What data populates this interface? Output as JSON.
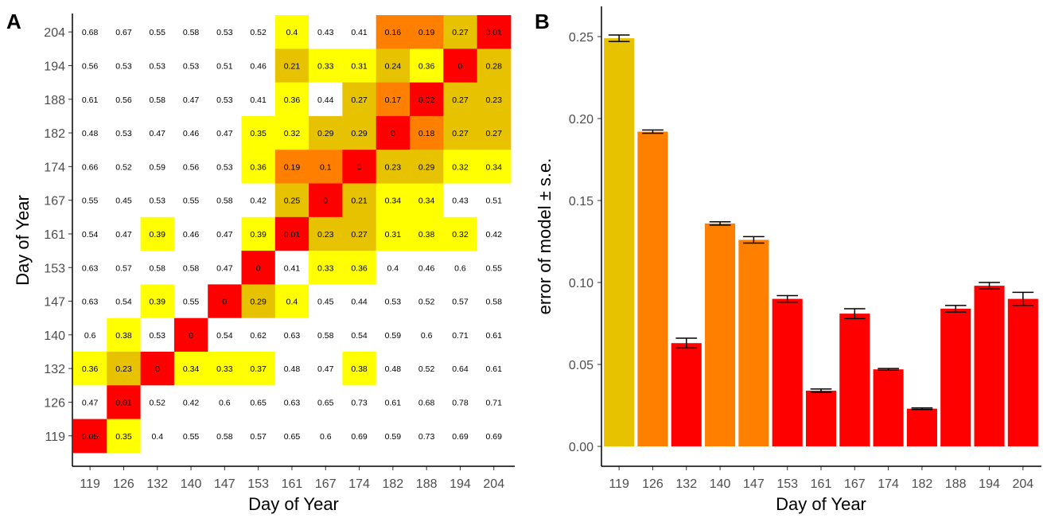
{
  "colors": {
    "white": "#ffffff",
    "yellow": "#ffff00",
    "gold": "#e6c200",
    "orange": "#ff8000",
    "red": "#ff0000",
    "bar_gold": "#e6c200",
    "bar_orange": "#ff8000",
    "bar_red": "#ff0000"
  },
  "chart_data": [
    {
      "type": "heatmap",
      "panel_label": "A",
      "xlabel": "Day of Year",
      "ylabel": "Day of Year",
      "x_categories": [
        "119",
        "126",
        "132",
        "140",
        "147",
        "153",
        "161",
        "167",
        "174",
        "182",
        "188",
        "194",
        "204"
      ],
      "y_categories": [
        "119",
        "126",
        "132",
        "140",
        "147",
        "153",
        "161",
        "167",
        "174",
        "182",
        "188",
        "194",
        "204"
      ],
      "rows": [
        {
          "y": "204",
          "values": [
            "0.68",
            "0.67",
            "0.55",
            "0.58",
            "0.53",
            "0.52",
            "0.4",
            "0.43",
            "0.41",
            "0.16",
            "0.19",
            "0.27",
            "0.01"
          ],
          "fills": [
            "white",
            "white",
            "white",
            "white",
            "white",
            "white",
            "yellow",
            "white",
            "white",
            "orange",
            "orange",
            "gold",
            "red"
          ]
        },
        {
          "y": "194",
          "values": [
            "0.56",
            "0.53",
            "0.53",
            "0.53",
            "0.51",
            "0.46",
            "0.21",
            "0.33",
            "0.31",
            "0.24",
            "0.36",
            "0",
            "0.28"
          ],
          "fills": [
            "white",
            "white",
            "white",
            "white",
            "white",
            "white",
            "gold",
            "yellow",
            "yellow",
            "gold",
            "yellow",
            "red",
            "gold"
          ]
        },
        {
          "y": "188",
          "values": [
            "0.61",
            "0.56",
            "0.58",
            "0.47",
            "0.53",
            "0.41",
            "0.36",
            "0.44",
            "0.27",
            "0.17",
            "0.02",
            "0.27",
            "0.23"
          ],
          "fills": [
            "white",
            "white",
            "white",
            "white",
            "white",
            "white",
            "yellow",
            "white",
            "gold",
            "orange",
            "red",
            "gold",
            "gold"
          ]
        },
        {
          "y": "182",
          "values": [
            "0.48",
            "0.53",
            "0.47",
            "0.46",
            "0.47",
            "0.35",
            "0.32",
            "0.29",
            "0.29",
            "0",
            "0.18",
            "0.27",
            "0.27"
          ],
          "fills": [
            "white",
            "white",
            "white",
            "white",
            "white",
            "yellow",
            "yellow",
            "gold",
            "gold",
            "red",
            "orange",
            "gold",
            "gold"
          ]
        },
        {
          "y": "174",
          "values": [
            "0.66",
            "0.52",
            "0.59",
            "0.56",
            "0.53",
            "0.36",
            "0.19",
            "0.1",
            "0",
            "0.23",
            "0.29",
            "0.32",
            "0.34"
          ],
          "fills": [
            "white",
            "white",
            "white",
            "white",
            "white",
            "yellow",
            "orange",
            "orange",
            "red",
            "gold",
            "gold",
            "yellow",
            "yellow"
          ]
        },
        {
          "y": "167",
          "values": [
            "0.55",
            "0.45",
            "0.53",
            "0.55",
            "0.58",
            "0.42",
            "0.25",
            "0",
            "0.21",
            "0.34",
            "0.34",
            "0.43",
            "0.51"
          ],
          "fills": [
            "white",
            "white",
            "white",
            "white",
            "white",
            "white",
            "gold",
            "red",
            "gold",
            "yellow",
            "yellow",
            "white",
            "white"
          ]
        },
        {
          "y": "161",
          "values": [
            "0.54",
            "0.47",
            "0.39",
            "0.46",
            "0.47",
            "0.39",
            "0.01",
            "0.23",
            "0.27",
            "0.31",
            "0.38",
            "0.32",
            "0.42"
          ],
          "fills": [
            "white",
            "white",
            "yellow",
            "white",
            "white",
            "yellow",
            "red",
            "gold",
            "gold",
            "yellow",
            "yellow",
            "yellow",
            "white"
          ]
        },
        {
          "y": "153",
          "values": [
            "0.63",
            "0.57",
            "0.58",
            "0.58",
            "0.47",
            "0",
            "0.41",
            "0.33",
            "0.36",
            "0.4",
            "0.46",
            "0.6",
            "0.55"
          ],
          "fills": [
            "white",
            "white",
            "white",
            "white",
            "white",
            "red",
            "white",
            "yellow",
            "yellow",
            "white",
            "white",
            "white",
            "white"
          ]
        },
        {
          "y": "147",
          "values": [
            "0.63",
            "0.54",
            "0.39",
            "0.55",
            "0",
            "0.29",
            "0.4",
            "0.45",
            "0.44",
            "0.53",
            "0.52",
            "0.57",
            "0.58"
          ],
          "fills": [
            "white",
            "white",
            "yellow",
            "white",
            "red",
            "gold",
            "yellow",
            "white",
            "white",
            "white",
            "white",
            "white",
            "white"
          ]
        },
        {
          "y": "140",
          "values": [
            "0.6",
            "0.38",
            "0.53",
            "0",
            "0.54",
            "0.62",
            "0.63",
            "0.58",
            "0.54",
            "0.59",
            "0.6",
            "0.71",
            "0.61"
          ],
          "fills": [
            "white",
            "yellow",
            "white",
            "red",
            "white",
            "white",
            "white",
            "white",
            "white",
            "white",
            "white",
            "white",
            "white"
          ]
        },
        {
          "y": "132",
          "values": [
            "0.36",
            "0.23",
            "0",
            "0.34",
            "0.33",
            "0.37",
            "0.48",
            "0.47",
            "0.38",
            "0.48",
            "0.52",
            "0.64",
            "0.61"
          ],
          "fills": [
            "yellow",
            "gold",
            "red",
            "yellow",
            "yellow",
            "yellow",
            "white",
            "white",
            "yellow",
            "white",
            "white",
            "white",
            "white"
          ]
        },
        {
          "y": "126",
          "values": [
            "0.47",
            "0.01",
            "0.52",
            "0.42",
            "0.6",
            "0.65",
            "0.63",
            "0.65",
            "0.73",
            "0.61",
            "0.68",
            "0.78",
            "0.71"
          ],
          "fills": [
            "white",
            "red",
            "white",
            "white",
            "white",
            "white",
            "white",
            "white",
            "white",
            "white",
            "white",
            "white",
            "white"
          ]
        },
        {
          "y": "119",
          "values": [
            "0.05",
            "0.35",
            "0.4",
            "0.55",
            "0.58",
            "0.57",
            "0.65",
            "0.6",
            "0.69",
            "0.59",
            "0.73",
            "0.69",
            "0.69"
          ],
          "fills": [
            "red",
            "yellow",
            "white",
            "white",
            "white",
            "white",
            "white",
            "white",
            "white",
            "white",
            "white",
            "white",
            "white"
          ]
        }
      ]
    },
    {
      "type": "bar",
      "panel_label": "B",
      "xlabel": "Day of Year",
      "ylabel": "error of model ± s.e.",
      "categories": [
        "119",
        "126",
        "132",
        "140",
        "147",
        "153",
        "161",
        "167",
        "174",
        "182",
        "188",
        "194",
        "204"
      ],
      "values": [
        0.249,
        0.192,
        0.063,
        0.136,
        0.126,
        0.09,
        0.034,
        0.081,
        0.047,
        0.023,
        0.084,
        0.098,
        0.09
      ],
      "errors": [
        0.002,
        0.001,
        0.003,
        0.001,
        0.002,
        0.002,
        0.001,
        0.003,
        0.0005,
        0.0005,
        0.002,
        0.002,
        0.004
      ],
      "bar_colors": [
        "bar_gold",
        "bar_orange",
        "bar_red",
        "bar_orange",
        "bar_orange",
        "bar_red",
        "bar_red",
        "bar_red",
        "bar_red",
        "bar_red",
        "bar_red",
        "bar_red",
        "bar_red"
      ],
      "ylim": [
        0,
        0.26
      ],
      "yticks": [
        "0.00",
        "0.05",
        "0.10",
        "0.15",
        "0.20",
        "0.25"
      ]
    }
  ]
}
